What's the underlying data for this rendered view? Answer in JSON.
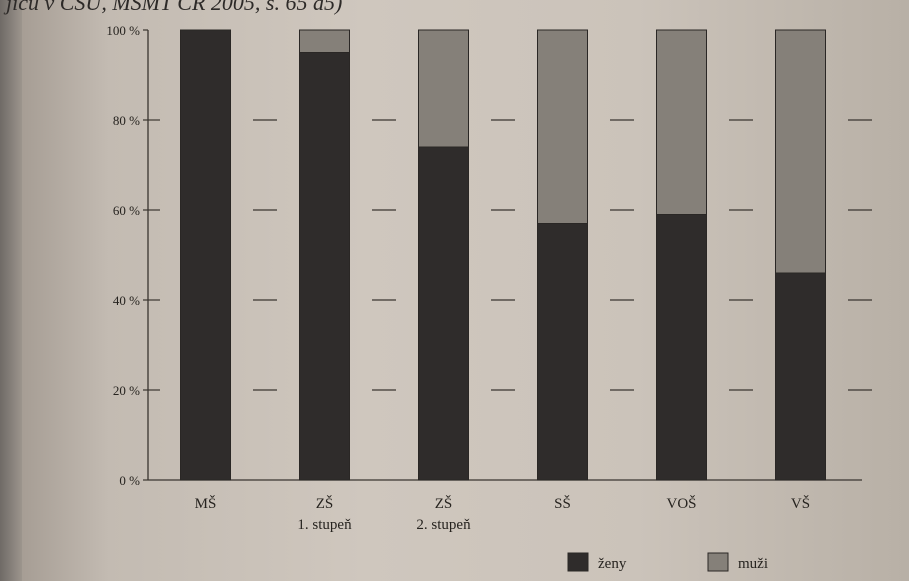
{
  "caption": {
    "text": "jiců v ČSÚ, MŠMT ČR 2005, s. 65 a5)"
  },
  "colors": {
    "zeny": "#2f2c2b",
    "muzi": "#858079",
    "background": "#cfc7be",
    "text": "#26231f"
  },
  "chart_data": {
    "type": "bar",
    "stacked": true,
    "normalized_percent": true,
    "title": "",
    "xlabel": "",
    "ylabel": "",
    "ylim": [
      0,
      100
    ],
    "y_ticks": [
      "0 %",
      "20 %",
      "40 %",
      "60 %",
      "80 %",
      "100 %"
    ],
    "grid": "short dashes between bars",
    "legend_position": "bottom-right",
    "categories": [
      "MŠ",
      "ZŠ\n1. stupeň",
      "ZŠ\n2. stupeň",
      "SŠ",
      "VOŠ",
      "VŠ"
    ],
    "category_labels": [
      {
        "line1": "MŠ",
        "line2": ""
      },
      {
        "line1": "ZŠ",
        "line2": "1. stupeň"
      },
      {
        "line1": "ZŠ",
        "line2": "2. stupeň"
      },
      {
        "line1": "SŠ",
        "line2": ""
      },
      {
        "line1": "VOŠ",
        "line2": ""
      },
      {
        "line1": "VŠ",
        "line2": ""
      }
    ],
    "series": [
      {
        "name": "ženy",
        "values": [
          100,
          95,
          74,
          57,
          59,
          46
        ]
      },
      {
        "name": "muži",
        "values": [
          0,
          5,
          26,
          43,
          41,
          54
        ]
      }
    ]
  }
}
